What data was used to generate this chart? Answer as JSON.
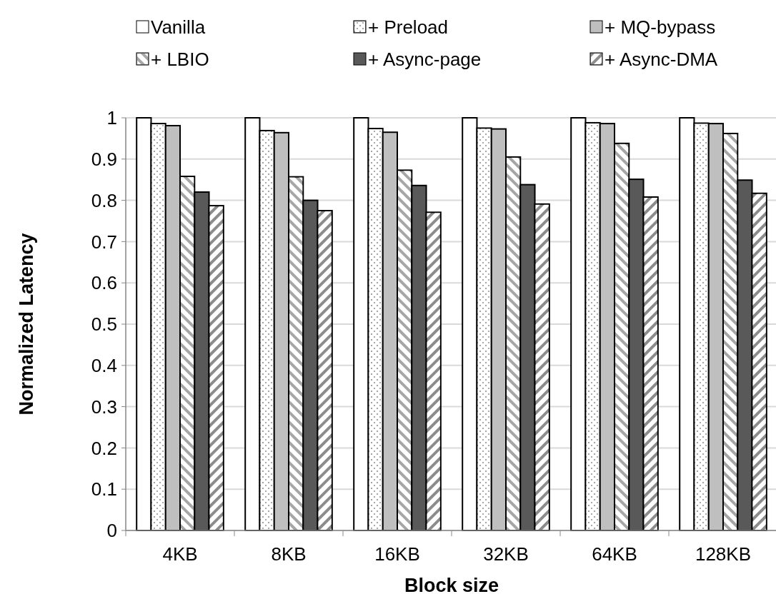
{
  "chart_data": {
    "type": "bar",
    "xlabel": "Block size",
    "ylabel": "Normalized Latency",
    "categories": [
      "4KB",
      "8KB",
      "16KB",
      "32KB",
      "64KB",
      "128KB"
    ],
    "series": [
      {
        "name": "Vanilla",
        "color": "#ffffff",
        "values": [
          1,
          1,
          1,
          1,
          1,
          1
        ]
      },
      {
        "name": "+ Preload",
        "color": "#808080",
        "values": [
          0.986,
          0.969,
          0.974,
          0.975,
          0.988,
          0.987
        ]
      },
      {
        "name": "+ MQ-bypass",
        "color": "#bfbfbf",
        "values": [
          0.981,
          0.964,
          0.965,
          0.973,
          0.986,
          0.986
        ]
      },
      {
        "name": "+ LBIO",
        "color": "#a6a6a6",
        "values": [
          0.858,
          0.857,
          0.873,
          0.905,
          0.938,
          0.962
        ]
      },
      {
        "name": "+ Async-page",
        "color": "#595959",
        "values": [
          0.82,
          0.8,
          0.836,
          0.838,
          0.851,
          0.849
        ]
      },
      {
        "name": "+ Async-DMA",
        "color": "#8c8c8c",
        "values": [
          0.787,
          0.775,
          0.771,
          0.791,
          0.808,
          0.817
        ]
      }
    ],
    "ylim": [
      0,
      1
    ],
    "yticks": [
      0,
      0.1,
      0.2,
      0.3,
      0.4,
      0.5,
      0.6,
      0.7,
      0.8,
      0.9,
      1
    ],
    "grid": "y",
    "legend": "top"
  }
}
